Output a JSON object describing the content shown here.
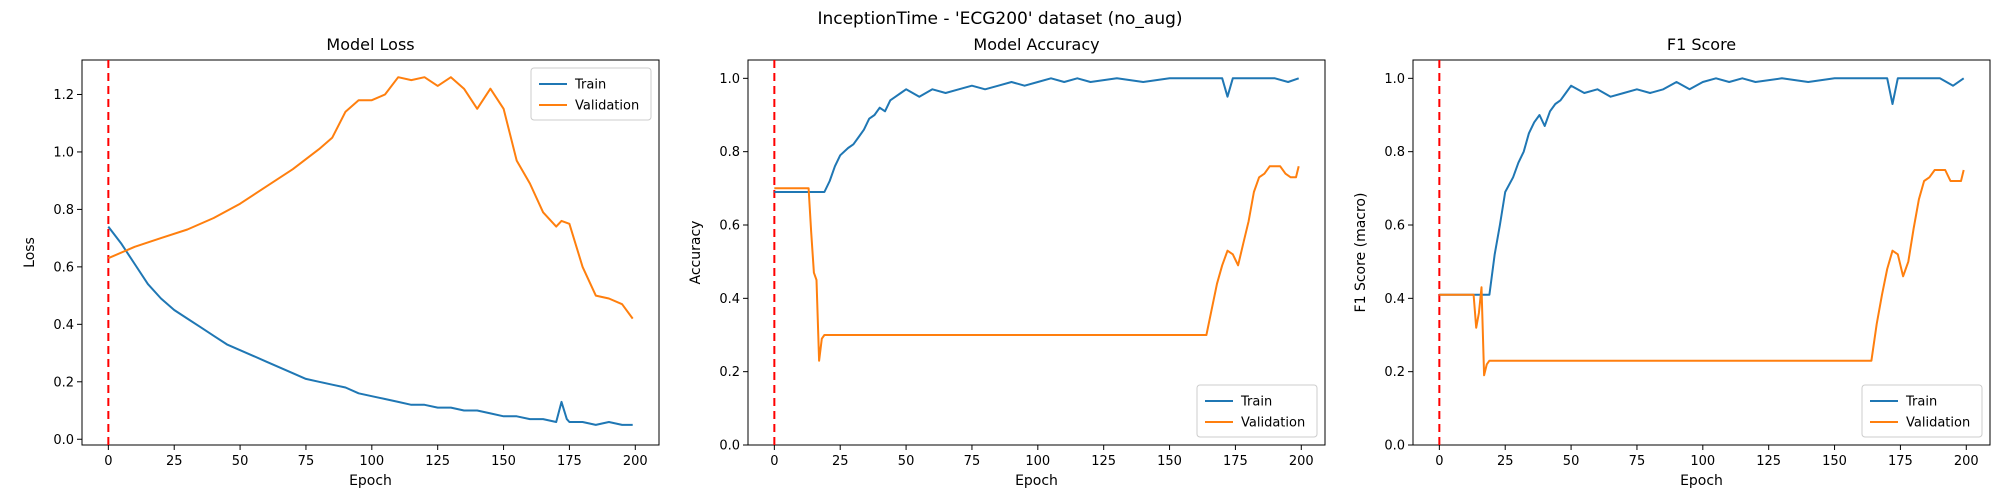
{
  "figure": {
    "suptitle": "InceptionTime - 'ECG200' dataset (no_aug)"
  },
  "colors": {
    "train": "#1f77b4",
    "validation": "#ff7f0e",
    "marker": "#ff0000",
    "axis": "#000000"
  },
  "chart_data": [
    {
      "type": "line",
      "title": "Model Loss",
      "xlabel": "Epoch",
      "ylabel": "Loss",
      "xlim": [
        -10,
        209
      ],
      "ylim": [
        -0.02,
        1.32
      ],
      "xticks": [
        0,
        25,
        50,
        75,
        100,
        125,
        150,
        175,
        200
      ],
      "yticks": [
        0.0,
        0.2,
        0.4,
        0.6,
        0.8,
        1.0,
        1.2
      ],
      "ytick_labels": [
        "0.0",
        "0.2",
        "0.4",
        "0.6",
        "0.8",
        "1.0",
        "1.2"
      ],
      "grid": false,
      "legend": "top-right",
      "vline": {
        "x": 0,
        "style": "dashed",
        "color": "#ff0000"
      },
      "series": [
        {
          "name": "Train",
          "x": [
            0,
            5,
            10,
            15,
            20,
            25,
            30,
            35,
            40,
            45,
            50,
            55,
            60,
            65,
            70,
            75,
            80,
            85,
            90,
            95,
            100,
            105,
            110,
            115,
            120,
            125,
            130,
            135,
            140,
            145,
            150,
            155,
            160,
            165,
            170,
            172,
            174,
            175,
            180,
            185,
            190,
            195,
            199
          ],
          "y": [
            0.74,
            0.68,
            0.61,
            0.54,
            0.49,
            0.45,
            0.42,
            0.39,
            0.36,
            0.33,
            0.31,
            0.29,
            0.27,
            0.25,
            0.23,
            0.21,
            0.2,
            0.19,
            0.18,
            0.16,
            0.15,
            0.14,
            0.13,
            0.12,
            0.12,
            0.11,
            0.11,
            0.1,
            0.1,
            0.09,
            0.08,
            0.08,
            0.07,
            0.07,
            0.06,
            0.13,
            0.07,
            0.06,
            0.06,
            0.05,
            0.06,
            0.05,
            0.05
          ]
        },
        {
          "name": "Validation",
          "x": [
            0,
            10,
            20,
            30,
            40,
            50,
            60,
            70,
            80,
            85,
            90,
            95,
            100,
            105,
            110,
            115,
            120,
            125,
            130,
            135,
            140,
            145,
            150,
            155,
            160,
            165,
            170,
            172,
            175,
            180,
            185,
            190,
            195,
            199
          ],
          "y": [
            0.63,
            0.67,
            0.7,
            0.73,
            0.77,
            0.82,
            0.88,
            0.94,
            1.01,
            1.05,
            1.14,
            1.18,
            1.18,
            1.2,
            1.26,
            1.25,
            1.26,
            1.23,
            1.26,
            1.22,
            1.15,
            1.22,
            1.15,
            0.97,
            0.89,
            0.79,
            0.74,
            0.76,
            0.75,
            0.6,
            0.5,
            0.49,
            0.47,
            0.42
          ]
        }
      ]
    },
    {
      "type": "line",
      "title": "Model Accuracy",
      "xlabel": "Epoch",
      "ylabel": "Accuracy",
      "xlim": [
        -10,
        209
      ],
      "ylim": [
        0.0,
        1.05
      ],
      "xticks": [
        0,
        25,
        50,
        75,
        100,
        125,
        150,
        175,
        200
      ],
      "yticks": [
        0.0,
        0.2,
        0.4,
        0.6,
        0.8,
        1.0
      ],
      "ytick_labels": [
        "0.0",
        "0.2",
        "0.4",
        "0.6",
        "0.8",
        "1.0"
      ],
      "grid": false,
      "legend": "bottom-right",
      "vline": {
        "x": 0,
        "style": "dashed",
        "color": "#ff0000"
      },
      "series": [
        {
          "name": "Train",
          "x": [
            0,
            19,
            21,
            23,
            25,
            28,
            30,
            32,
            34,
            36,
            38,
            40,
            42,
            44,
            46,
            48,
            50,
            55,
            60,
            65,
            70,
            75,
            80,
            85,
            90,
            95,
            100,
            105,
            110,
            115,
            120,
            130,
            140,
            150,
            160,
            170,
            172,
            174,
            180,
            190,
            195,
            199
          ],
          "y": [
            0.69,
            0.69,
            0.72,
            0.76,
            0.79,
            0.81,
            0.82,
            0.84,
            0.86,
            0.89,
            0.9,
            0.92,
            0.91,
            0.94,
            0.95,
            0.96,
            0.97,
            0.95,
            0.97,
            0.96,
            0.97,
            0.98,
            0.97,
            0.98,
            0.99,
            0.98,
            0.99,
            1.0,
            0.99,
            1.0,
            0.99,
            1.0,
            0.99,
            1.0,
            1.0,
            1.0,
            0.95,
            1.0,
            1.0,
            1.0,
            0.99,
            1.0
          ]
        },
        {
          "name": "Validation",
          "x": [
            0,
            12,
            13,
            14,
            15,
            16,
            17,
            18,
            19,
            20,
            100,
            164,
            166,
            168,
            170,
            172,
            174,
            176,
            178,
            180,
            182,
            184,
            186,
            188,
            190,
            192,
            194,
            196,
            198,
            199
          ],
          "y": [
            0.7,
            0.7,
            0.7,
            0.58,
            0.47,
            0.45,
            0.23,
            0.29,
            0.3,
            0.3,
            0.3,
            0.3,
            0.37,
            0.44,
            0.49,
            0.53,
            0.52,
            0.49,
            0.55,
            0.61,
            0.69,
            0.73,
            0.74,
            0.76,
            0.76,
            0.76,
            0.74,
            0.73,
            0.73,
            0.76
          ]
        }
      ]
    },
    {
      "type": "line",
      "title": "F1 Score",
      "xlabel": "Epoch",
      "ylabel": "F1 Score (macro)",
      "xlim": [
        -10,
        209
      ],
      "ylim": [
        0.0,
        1.05
      ],
      "xticks": [
        0,
        25,
        50,
        75,
        100,
        125,
        150,
        175,
        200
      ],
      "yticks": [
        0.0,
        0.2,
        0.4,
        0.6,
        0.8,
        1.0
      ],
      "ytick_labels": [
        "0.0",
        "0.2",
        "0.4",
        "0.6",
        "0.8",
        "1.0"
      ],
      "grid": false,
      "legend": "bottom-right",
      "vline": {
        "x": 0,
        "style": "dashed",
        "color": "#ff0000"
      },
      "series": [
        {
          "name": "Train",
          "x": [
            0,
            19,
            21,
            23,
            25,
            28,
            30,
            32,
            34,
            36,
            38,
            40,
            42,
            44,
            46,
            48,
            50,
            55,
            60,
            65,
            70,
            75,
            80,
            85,
            90,
            95,
            100,
            105,
            110,
            115,
            120,
            130,
            140,
            150,
            160,
            170,
            172,
            174,
            180,
            190,
            195,
            199
          ],
          "y": [
            0.41,
            0.41,
            0.52,
            0.6,
            0.69,
            0.73,
            0.77,
            0.8,
            0.85,
            0.88,
            0.9,
            0.87,
            0.91,
            0.93,
            0.94,
            0.96,
            0.98,
            0.96,
            0.97,
            0.95,
            0.96,
            0.97,
            0.96,
            0.97,
            0.99,
            0.97,
            0.99,
            1.0,
            0.99,
            1.0,
            0.99,
            1.0,
            0.99,
            1.0,
            1.0,
            1.0,
            0.93,
            1.0,
            1.0,
            1.0,
            0.98,
            1.0
          ]
        },
        {
          "name": "Validation",
          "x": [
            0,
            12,
            13,
            14,
            15,
            16,
            17,
            18,
            19,
            20,
            100,
            164,
            166,
            168,
            170,
            172,
            174,
            176,
            178,
            180,
            182,
            184,
            186,
            188,
            190,
            192,
            194,
            196,
            198,
            199
          ],
          "y": [
            0.41,
            0.41,
            0.41,
            0.32,
            0.36,
            0.43,
            0.19,
            0.22,
            0.23,
            0.23,
            0.23,
            0.23,
            0.33,
            0.41,
            0.48,
            0.53,
            0.52,
            0.46,
            0.5,
            0.59,
            0.67,
            0.72,
            0.73,
            0.75,
            0.75,
            0.75,
            0.72,
            0.72,
            0.72,
            0.75
          ]
        }
      ]
    }
  ]
}
